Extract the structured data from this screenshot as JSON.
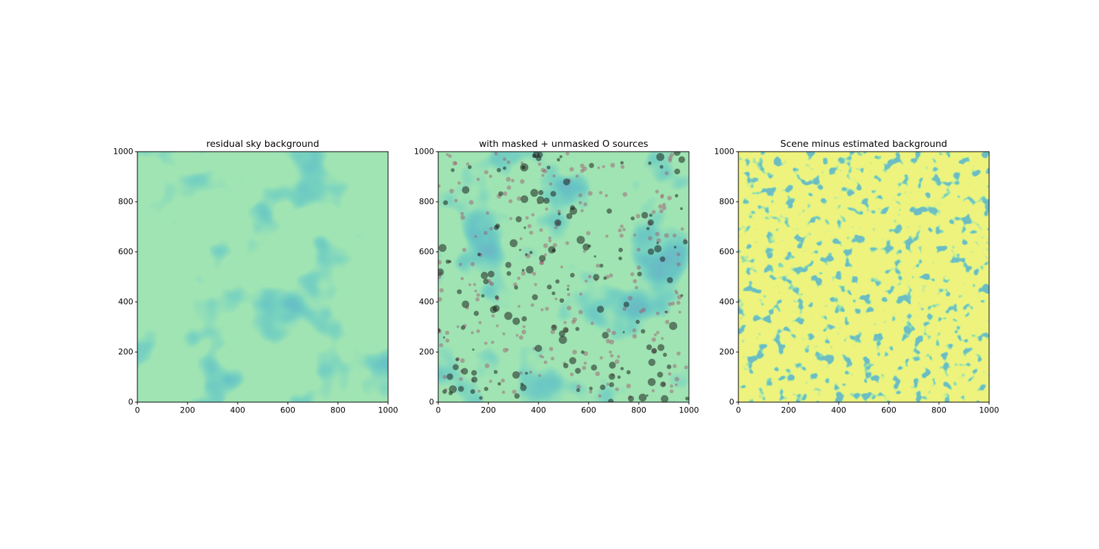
{
  "chart_data": [
    {
      "type": "image",
      "title": "residual sky background",
      "xlim": [
        0,
        1000
      ],
      "ylim": [
        0,
        1000
      ],
      "xticks": [
        0,
        200,
        400,
        600,
        800,
        1000
      ],
      "yticks": [
        0,
        200,
        400,
        600,
        800,
        1000
      ]
    },
    {
      "type": "image",
      "title": "with masked + unmasked O sources",
      "xlim": [
        0,
        1000
      ],
      "ylim": [
        0,
        1000
      ],
      "xticks": [
        0,
        200,
        400,
        600,
        800,
        1000
      ],
      "yticks": [
        0,
        200,
        400,
        600,
        800,
        1000
      ]
    },
    {
      "type": "image",
      "title": "Scene minus estimated background",
      "xlim": [
        0,
        1000
      ],
      "ylim": [
        0,
        1000
      ],
      "xticks": [
        0,
        200,
        400,
        600,
        800,
        1000
      ],
      "yticks": [
        0,
        200,
        400,
        600,
        800,
        1000
      ]
    }
  ]
}
